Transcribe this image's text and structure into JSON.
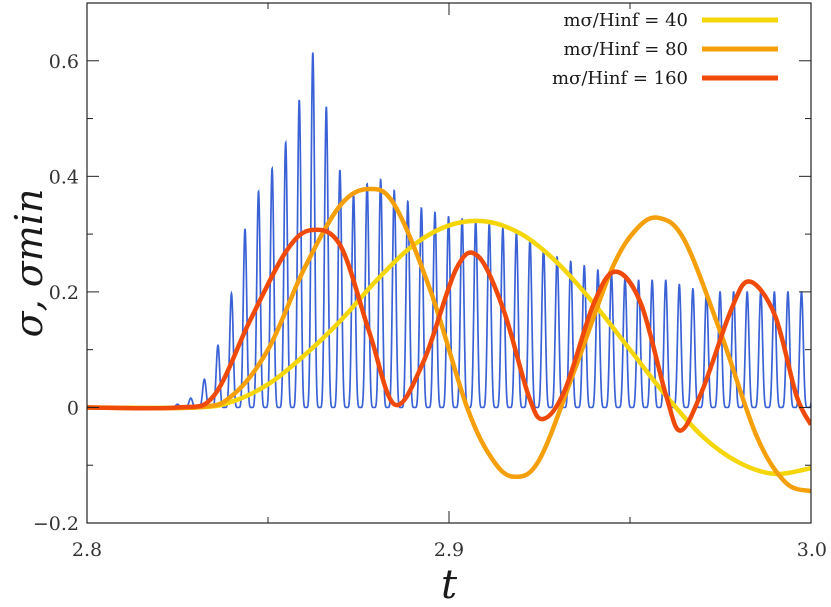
{
  "chart_data": {
    "type": "line",
    "xlabel": "t",
    "ylabel": "σ,  σmin",
    "xlim": [
      2.8,
      3.0
    ],
    "ylim": [
      -0.2,
      0.7
    ],
    "xticks": [
      2.8,
      2.9,
      3.0
    ],
    "xtick_labels": [
      "2.8",
      "2.9",
      "3.0"
    ],
    "yticks": [
      -0.2,
      0,
      0.2,
      0.4,
      0.6
    ],
    "ytick_labels": [
      "−0.2",
      "0",
      "0.2",
      "0.4",
      "0.6"
    ],
    "minor_xticks": [
      2.85,
      2.95
    ],
    "minor_yticks": [
      -0.1,
      0.1,
      0.3,
      0.5
    ],
    "grid": false,
    "legend_position": "top-right",
    "oscillation": {
      "color": "#3a62d6",
      "x_start": 2.823,
      "period": 0.00375,
      "envelope": [
        [
          2.823,
          0.0
        ],
        [
          2.83,
          0.02
        ],
        [
          2.835,
          0.08
        ],
        [
          2.84,
          0.2
        ],
        [
          2.845,
          0.35
        ],
        [
          2.85,
          0.4
        ],
        [
          2.855,
          0.46
        ],
        [
          2.86,
          0.56
        ],
        [
          2.8635,
          0.64
        ],
        [
          2.867,
          0.48
        ],
        [
          2.872,
          0.36
        ],
        [
          2.88,
          0.4
        ],
        [
          2.89,
          0.35
        ],
        [
          2.9,
          0.33
        ],
        [
          2.91,
          0.32
        ],
        [
          2.92,
          0.3
        ],
        [
          2.93,
          0.26
        ],
        [
          2.94,
          0.24
        ],
        [
          2.95,
          0.22
        ],
        [
          2.96,
          0.22
        ],
        [
          2.97,
          0.2
        ],
        [
          2.98,
          0.2
        ],
        [
          2.99,
          0.2
        ],
        [
          3.0,
          0.2
        ]
      ]
    },
    "series": [
      {
        "name": "mσ/Hinf = 40",
        "legend_main": "40",
        "color": "#f5d60a",
        "points": [
          [
            2.8,
            0.0
          ],
          [
            2.83,
            0.0
          ],
          [
            2.84,
            0.01
          ],
          [
            2.85,
            0.04
          ],
          [
            2.86,
            0.09
          ],
          [
            2.87,
            0.15
          ],
          [
            2.88,
            0.22
          ],
          [
            2.89,
            0.28
          ],
          [
            2.9,
            0.315
          ],
          [
            2.91,
            0.322
          ],
          [
            2.92,
            0.3
          ],
          [
            2.93,
            0.25
          ],
          [
            2.94,
            0.18
          ],
          [
            2.95,
            0.1
          ],
          [
            2.96,
            0.02
          ],
          [
            2.97,
            -0.05
          ],
          [
            2.98,
            -0.095
          ],
          [
            2.99,
            -0.115
          ],
          [
            3.0,
            -0.105
          ]
        ]
      },
      {
        "name": "mσ/Hinf = 80",
        "legend_main": "80",
        "color": "#f5a00a",
        "points": [
          [
            2.8,
            0.0
          ],
          [
            2.83,
            0.0
          ],
          [
            2.84,
            0.02
          ],
          [
            2.85,
            0.1
          ],
          [
            2.86,
            0.24
          ],
          [
            2.87,
            0.35
          ],
          [
            2.878,
            0.378
          ],
          [
            2.885,
            0.35
          ],
          [
            2.895,
            0.2
          ],
          [
            2.905,
            0.0
          ],
          [
            2.912,
            -0.09
          ],
          [
            2.918,
            -0.12
          ],
          [
            2.925,
            -0.09
          ],
          [
            2.935,
            0.07
          ],
          [
            2.945,
            0.24
          ],
          [
            2.952,
            0.31
          ],
          [
            2.958,
            0.328
          ],
          [
            2.965,
            0.29
          ],
          [
            2.975,
            0.13
          ],
          [
            2.985,
            -0.05
          ],
          [
            2.993,
            -0.13
          ],
          [
            3.0,
            -0.145
          ]
        ]
      },
      {
        "name": "mσ/Hinf = 160",
        "legend_main": "160",
        "color": "#f04a0a",
        "points": [
          [
            2.8,
            0.0
          ],
          [
            2.825,
            0.0
          ],
          [
            2.835,
            0.02
          ],
          [
            2.845,
            0.15
          ],
          [
            2.855,
            0.27
          ],
          [
            2.862,
            0.307
          ],
          [
            2.87,
            0.28
          ],
          [
            2.878,
            0.13
          ],
          [
            2.885,
            0.005
          ],
          [
            2.893,
            0.08
          ],
          [
            2.902,
            0.24
          ],
          [
            2.908,
            0.262
          ],
          [
            2.915,
            0.17
          ],
          [
            2.922,
            0.02
          ],
          [
            2.926,
            -0.02
          ],
          [
            2.932,
            0.03
          ],
          [
            2.94,
            0.18
          ],
          [
            2.946,
            0.235
          ],
          [
            2.953,
            0.18
          ],
          [
            2.96,
            0.02
          ],
          [
            2.964,
            -0.04
          ],
          [
            2.97,
            0.03
          ],
          [
            2.978,
            0.17
          ],
          [
            2.983,
            0.218
          ],
          [
            2.99,
            0.16
          ],
          [
            2.996,
            0.02
          ],
          [
            3.0,
            -0.03
          ]
        ]
      }
    ]
  }
}
